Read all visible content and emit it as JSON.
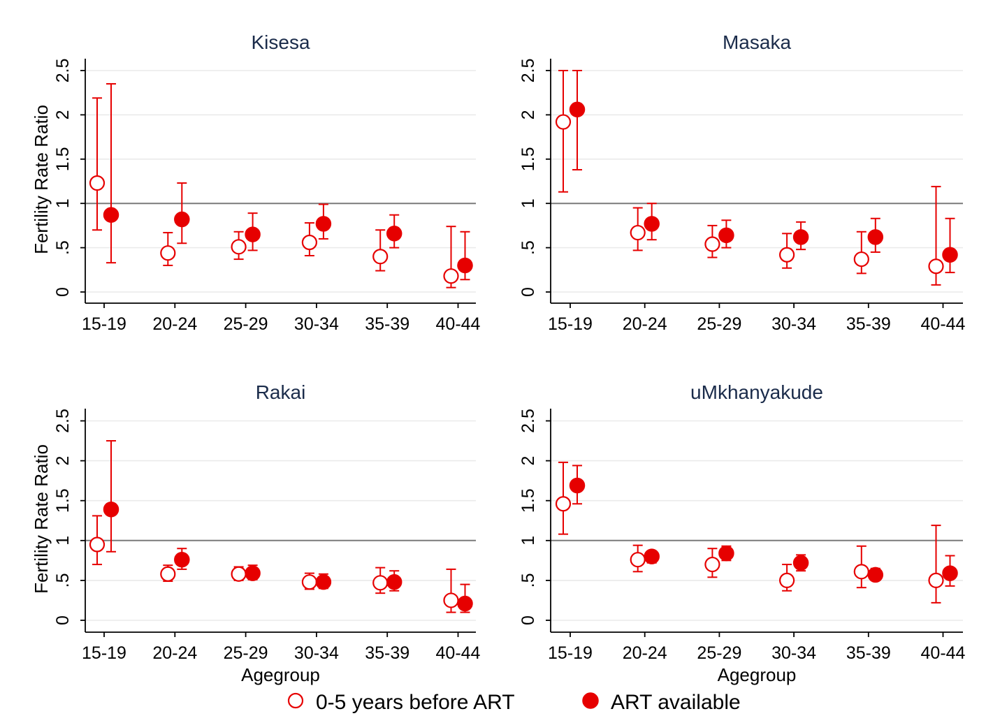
{
  "chart_data": [
    {
      "type": "scatter",
      "title": "Kisesa",
      "xlabel": "",
      "ylabel": "Fertility Rate Ratio",
      "ylim": [
        0,
        2.6
      ],
      "yticks": [
        "0",
        ".5",
        "1",
        "1.5",
        "2",
        "2.5"
      ],
      "reference_line": 1,
      "grid": true,
      "categories": [
        "15-19",
        "20-24",
        "25-29",
        "30-34",
        "35-39",
        "40-44"
      ],
      "series": [
        {
          "name": "0-5 years before ART",
          "marker": "hollow-circle",
          "color": "#e60000",
          "values": [
            1.23,
            0.44,
            0.51,
            0.56,
            0.4,
            0.18
          ],
          "ci_low": [
            0.7,
            0.3,
            0.37,
            0.41,
            0.24,
            0.05
          ],
          "ci_high": [
            2.19,
            0.67,
            0.68,
            0.78,
            0.7,
            0.74
          ]
        },
        {
          "name": "ART available",
          "marker": "filled-circle",
          "color": "#e60000",
          "values": [
            0.87,
            0.82,
            0.65,
            0.77,
            0.66,
            0.3
          ],
          "ci_low": [
            0.33,
            0.55,
            0.47,
            0.6,
            0.5,
            0.14
          ],
          "ci_high": [
            2.35,
            1.23,
            0.89,
            0.99,
            0.87,
            0.68
          ]
        }
      ]
    },
    {
      "type": "scatter",
      "title": "Masaka",
      "xlabel": "",
      "ylabel": "",
      "ylim": [
        0,
        2.6
      ],
      "yticks": [
        "0",
        ".5",
        "1",
        "1.5",
        "2",
        "2.5"
      ],
      "reference_line": 1,
      "grid": true,
      "categories": [
        "15-19",
        "20-24",
        "25-29",
        "30-34",
        "35-39",
        "40-44"
      ],
      "series": [
        {
          "name": "0-5 years before ART",
          "marker": "hollow-circle",
          "color": "#e60000",
          "values": [
            1.92,
            0.67,
            0.54,
            0.42,
            0.37,
            0.29
          ],
          "ci_low": [
            1.13,
            0.47,
            0.39,
            0.27,
            0.21,
            0.08
          ],
          "ci_high": [
            2.5,
            0.95,
            0.75,
            0.66,
            0.68,
            1.19
          ]
        },
        {
          "name": "ART available",
          "marker": "filled-circle",
          "color": "#e60000",
          "values": [
            2.06,
            0.77,
            0.64,
            0.62,
            0.62,
            0.42
          ],
          "ci_low": [
            1.38,
            0.59,
            0.5,
            0.48,
            0.45,
            0.22
          ],
          "ci_high": [
            2.5,
            1.0,
            0.81,
            0.79,
            0.83,
            0.83
          ]
        }
      ]
    },
    {
      "type": "scatter",
      "title": "Rakai",
      "xlabel": "Agegroup",
      "ylabel": "Fertility Rate Ratio",
      "ylim": [
        0,
        2.6
      ],
      "yticks": [
        "0",
        ".5",
        "1",
        "1.5",
        "2",
        "2.5"
      ],
      "reference_line": 1,
      "grid": true,
      "categories": [
        "15-19",
        "20-24",
        "25-29",
        "30-34",
        "35-39",
        "40-44"
      ],
      "series": [
        {
          "name": "0-5 years before ART",
          "marker": "hollow-circle",
          "color": "#e60000",
          "values": [
            0.95,
            0.58,
            0.58,
            0.48,
            0.47,
            0.25
          ],
          "ci_low": [
            0.7,
            0.49,
            0.5,
            0.39,
            0.34,
            0.1
          ],
          "ci_high": [
            1.31,
            0.69,
            0.67,
            0.59,
            0.66,
            0.64
          ]
        },
        {
          "name": "ART available",
          "marker": "filled-circle",
          "color": "#e60000",
          "values": [
            1.39,
            0.76,
            0.59,
            0.48,
            0.48,
            0.21
          ],
          "ci_low": [
            0.86,
            0.64,
            0.51,
            0.4,
            0.37,
            0.1
          ],
          "ci_high": [
            2.25,
            0.9,
            0.69,
            0.58,
            0.62,
            0.45
          ]
        }
      ]
    },
    {
      "type": "scatter",
      "title": "uMkhanyakude",
      "xlabel": "Agegroup",
      "ylabel": "",
      "ylim": [
        0,
        2.6
      ],
      "yticks": [
        "0",
        ".5",
        "1",
        "1.5",
        "2",
        "2.5"
      ],
      "reference_line": 1,
      "grid": true,
      "categories": [
        "15-19",
        "20-24",
        "25-29",
        "30-34",
        "35-39",
        "40-44"
      ],
      "series": [
        {
          "name": "0-5 years before ART",
          "marker": "hollow-circle",
          "color": "#e60000",
          "values": [
            1.46,
            0.76,
            0.7,
            0.5,
            0.61,
            0.5
          ],
          "ci_low": [
            1.08,
            0.61,
            0.54,
            0.37,
            0.41,
            0.22
          ],
          "ci_high": [
            1.98,
            0.94,
            0.9,
            0.7,
            0.93,
            1.19
          ]
        },
        {
          "name": "ART available",
          "marker": "filled-circle",
          "color": "#e60000",
          "values": [
            1.69,
            0.8,
            0.84,
            0.72,
            0.57,
            0.59
          ],
          "ci_low": [
            1.46,
            0.72,
            0.75,
            0.62,
            0.5,
            0.43
          ],
          "ci_high": [
            1.94,
            0.87,
            0.93,
            0.82,
            0.65,
            0.81
          ]
        }
      ]
    }
  ],
  "legend": {
    "placement": "bottom",
    "items": [
      {
        "label": "0-5 years before ART",
        "marker": "hollow-circle",
        "color": "#e60000"
      },
      {
        "label": "ART available",
        "marker": "filled-circle",
        "color": "#e60000"
      }
    ]
  }
}
